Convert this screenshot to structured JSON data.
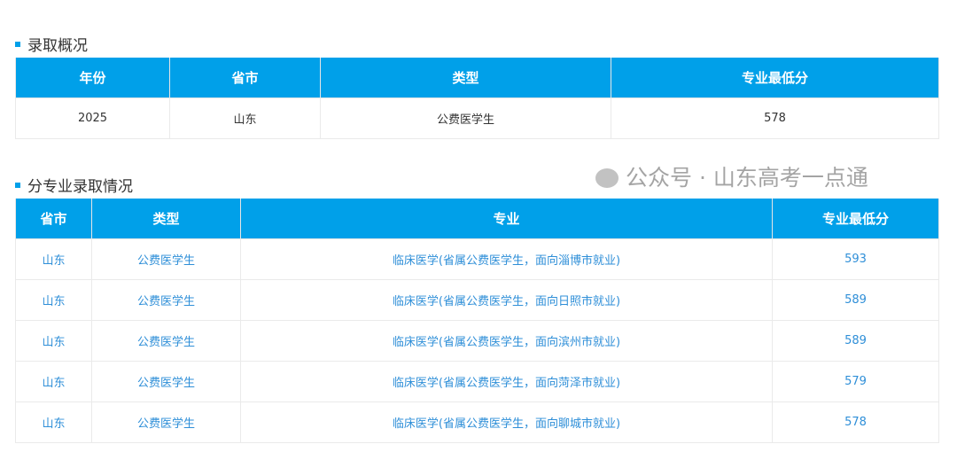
{
  "overview": {
    "title": "录取概况",
    "headers": [
      "年份",
      "省市",
      "类型",
      "专业最低分"
    ],
    "rows": [
      [
        "2025",
        "山东",
        "公费医学生",
        "578"
      ]
    ]
  },
  "majors": {
    "title": "分专业录取情况",
    "headers": [
      "省市",
      "类型",
      "专业",
      "专业最低分"
    ],
    "rows": [
      [
        "山东",
        "公费医学生",
        "临床医学(省属公费医学生，面向淄博市就业)",
        "593"
      ],
      [
        "山东",
        "公费医学生",
        "临床医学(省属公费医学生，面向日照市就业)",
        "589"
      ],
      [
        "山东",
        "公费医学生",
        "临床医学(省属公费医学生，面向滨州市就业)",
        "589"
      ],
      [
        "山东",
        "公费医学生",
        "临床医学(省属公费医学生，面向菏泽市就业)",
        "579"
      ],
      [
        "山东",
        "公费医学生",
        "临床医学(省属公费医学生，面向聊城市就业)",
        "578"
      ]
    ]
  },
  "watermark": "公众号 · 山东高考一点通",
  "colors": {
    "header": "#00a0e9",
    "link": "#2f8fd8"
  }
}
